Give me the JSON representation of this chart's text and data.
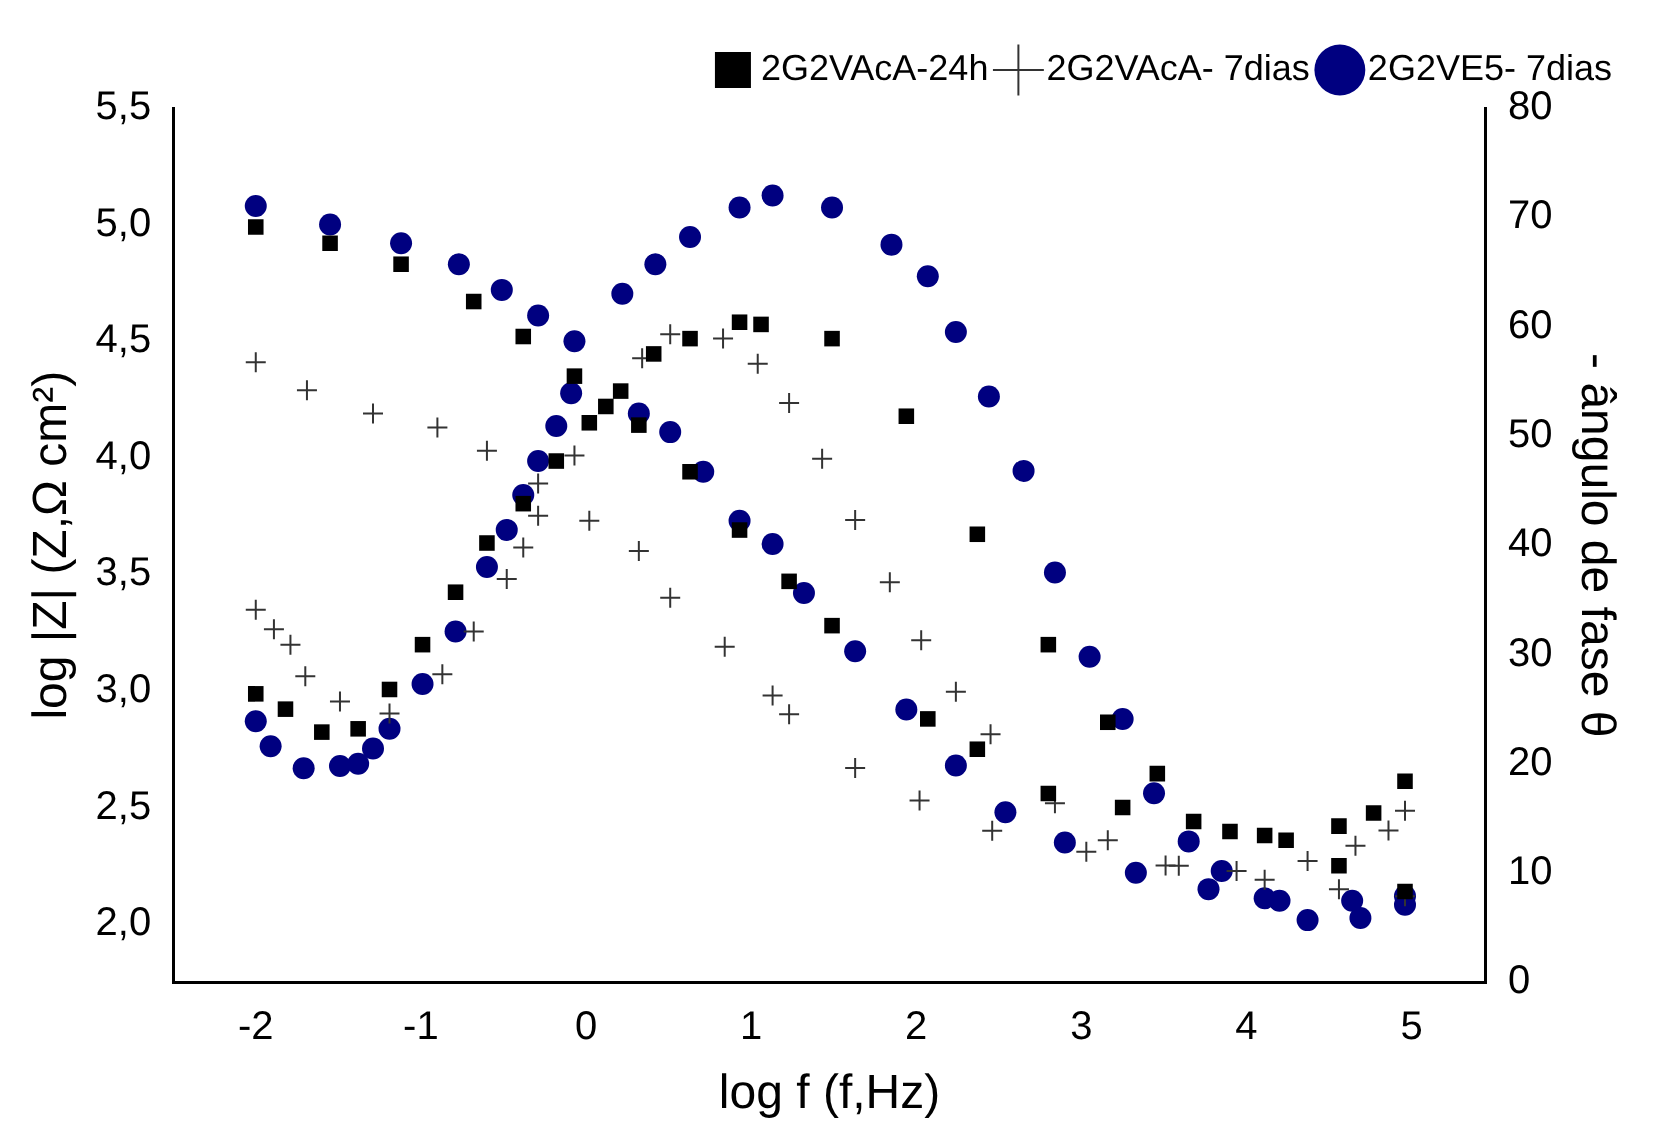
{
  "chart_data": {
    "type": "scatter",
    "xlabel": "log f (f,Hz)",
    "ylabel": "log |Z| (Z,Ω cm²)",
    "y2label": "- ângulo de fase θ",
    "xlim": [
      -2.5,
      5.45
    ],
    "xticks": [
      -2,
      -1,
      0,
      1,
      2,
      3,
      4,
      5
    ],
    "ylim": [
      1.75,
      5.5
    ],
    "yticks": [
      {
        "value": 2,
        "label": "2,0"
      },
      {
        "value": 2.5,
        "label": "2,5"
      },
      {
        "value": 3,
        "label": "3,0"
      },
      {
        "value": 3.5,
        "label": "3,5"
      },
      {
        "value": 4,
        "label": "4,0"
      },
      {
        "value": 4.5,
        "label": "4,5"
      },
      {
        "value": 5,
        "label": "5,0"
      },
      {
        "value": 5.5,
        "label": "5,5"
      }
    ],
    "y2lim": [
      0,
      80
    ],
    "y2ticks": [
      0,
      10,
      20,
      30,
      40,
      50,
      60,
      70,
      80
    ],
    "grid": false,
    "legend": "top right",
    "series": [
      {
        "name": "2G2VAcA-24h",
        "color": "#000000",
        "marker": "square",
        "x": [
          -2,
          -1.55,
          -1.12,
          -0.68,
          -0.38,
          -0.07,
          0.12,
          0.32,
          0.63,
          0.93,
          1.23,
          1.49,
          2.07,
          2.37,
          2.8,
          3.25,
          3.68,
          4.11,
          4.56,
          4.96
        ],
        "values": [
          4.99,
          4.92,
          4.83,
          4.67,
          4.52,
          4.35,
          4.22,
          4.14,
          3.94,
          3.69,
          3.47,
          3.28,
          2.88,
          2.75,
          2.56,
          2.5,
          2.44,
          2.38,
          2.25,
          2.14
        ]
      },
      {
        "name": "2G2VAcA- 7dias",
        "color": "#333333",
        "marker": "cross",
        "x": [
          -2,
          -1.69,
          -1.29,
          -0.9,
          -0.6,
          -0.29,
          0.02,
          0.32,
          0.51,
          0.84,
          1.13,
          1.23,
          1.63,
          2.02,
          2.46,
          3.03,
          3.59,
          4.11,
          4.56,
          4.96
        ],
        "values": [
          4.41,
          4.29,
          4.19,
          4.13,
          4.03,
          3.89,
          3.73,
          3.6,
          3.4,
          3.19,
          2.98,
          2.9,
          2.67,
          2.53,
          2.4,
          2.31,
          2.25,
          2.19,
          2.15,
          2.12
        ]
      },
      {
        "name": "2G2VE5- 7dias",
        "color": "#000080",
        "marker": "circle",
        "x": [
          -2,
          -1.55,
          -1.12,
          -0.77,
          -0.51,
          -0.29,
          -0.07,
          0.32,
          0.51,
          0.71,
          0.93,
          1.13,
          1.32,
          1.63,
          1.94,
          2.24,
          2.54,
          2.9,
          3.33,
          3.77,
          4.2,
          4.64,
          4.96
        ],
        "values": [
          5.08,
          5.0,
          4.92,
          4.83,
          4.72,
          4.61,
          4.5,
          4.19,
          4.11,
          3.94,
          3.73,
          3.63,
          3.42,
          3.17,
          2.92,
          2.68,
          2.48,
          2.35,
          2.22,
          2.15,
          2.1,
          2.1,
          2.12
        ]
      },
      {
        "color": "#000000",
        "marker": "square",
        "axis": "y2",
        "x": [
          -2,
          -1.82,
          -1.6,
          -1.38,
          -1.19,
          -0.99,
          -0.79,
          -0.6,
          -0.38,
          -0.18,
          0.02,
          0.21,
          0.41,
          0.63,
          0.93,
          1.06,
          1.49,
          1.94,
          2.37,
          2.8,
          3.16,
          3.46,
          3.9,
          4.24,
          4.56,
          4.77,
          4.96
        ],
        "values": [
          26.4,
          25,
          22.9,
          23.2,
          26.8,
          30.9,
          35.7,
          40.2,
          43.8,
          47.7,
          51.2,
          54.1,
          57.5,
          58.9,
          60.4,
          60.2,
          58.9,
          51.8,
          41,
          30.9,
          23.8,
          19.1,
          13.8,
          13,
          14.3,
          15.5,
          18.4
        ]
      },
      {
        "color": "#333333",
        "marker": "cross",
        "axis": "y2",
        "x": [
          -2,
          -1.89,
          -1.79,
          -1.7,
          -1.49,
          -1.19,
          -0.87,
          -0.68,
          -0.48,
          -0.38,
          -0.29,
          -0.07,
          0.34,
          0.51,
          0.83,
          1.04,
          1.23,
          1.43,
          1.63,
          1.84,
          2.03,
          2.24,
          2.45,
          2.84,
          3.16,
          3.51,
          3.94,
          4.37,
          4.66,
          4.86,
          4.96
        ],
        "values": [
          34.1,
          32.3,
          30.9,
          28,
          25.7,
          24.6,
          28.2,
          32.1,
          36.9,
          39.8,
          42.7,
          48.2,
          57.1,
          59.3,
          58.9,
          56.6,
          53,
          47.9,
          42.3,
          36.6,
          31.3,
          26.6,
          22.7,
          16.4,
          13,
          10.7,
          10.2,
          11.1,
          12.5,
          13.9,
          15.7
        ]
      },
      {
        "color": "#000080",
        "marker": "circle",
        "axis": "y2",
        "x": [
          -2,
          -1.91,
          -1.71,
          -1.49,
          -1.38,
          -1.29,
          -1.19,
          -0.99,
          -0.79,
          -0.6,
          -0.48,
          -0.38,
          -0.29,
          -0.18,
          -0.09,
          0.22,
          0.42,
          0.63,
          0.93,
          1.13,
          1.49,
          1.85,
          2.07,
          2.24,
          2.44,
          2.65,
          2.84,
          3.05,
          3.25,
          3.44,
          3.65,
          3.85,
          4.11,
          4.37,
          4.69,
          4.96
        ],
        "values": [
          23.9,
          21.6,
          19.6,
          19.8,
          20,
          21.4,
          23.2,
          27.3,
          32.1,
          38,
          41.4,
          44.6,
          47.7,
          50.9,
          53.9,
          63,
          65.7,
          68.2,
          70.9,
          72,
          70.9,
          67.5,
          64.6,
          59.5,
          53.6,
          46.8,
          37.5,
          29.8,
          24.1,
          17.3,
          12.9,
          10.2,
          7.7,
          5.7,
          5.9,
          7.1
        ]
      }
    ]
  }
}
